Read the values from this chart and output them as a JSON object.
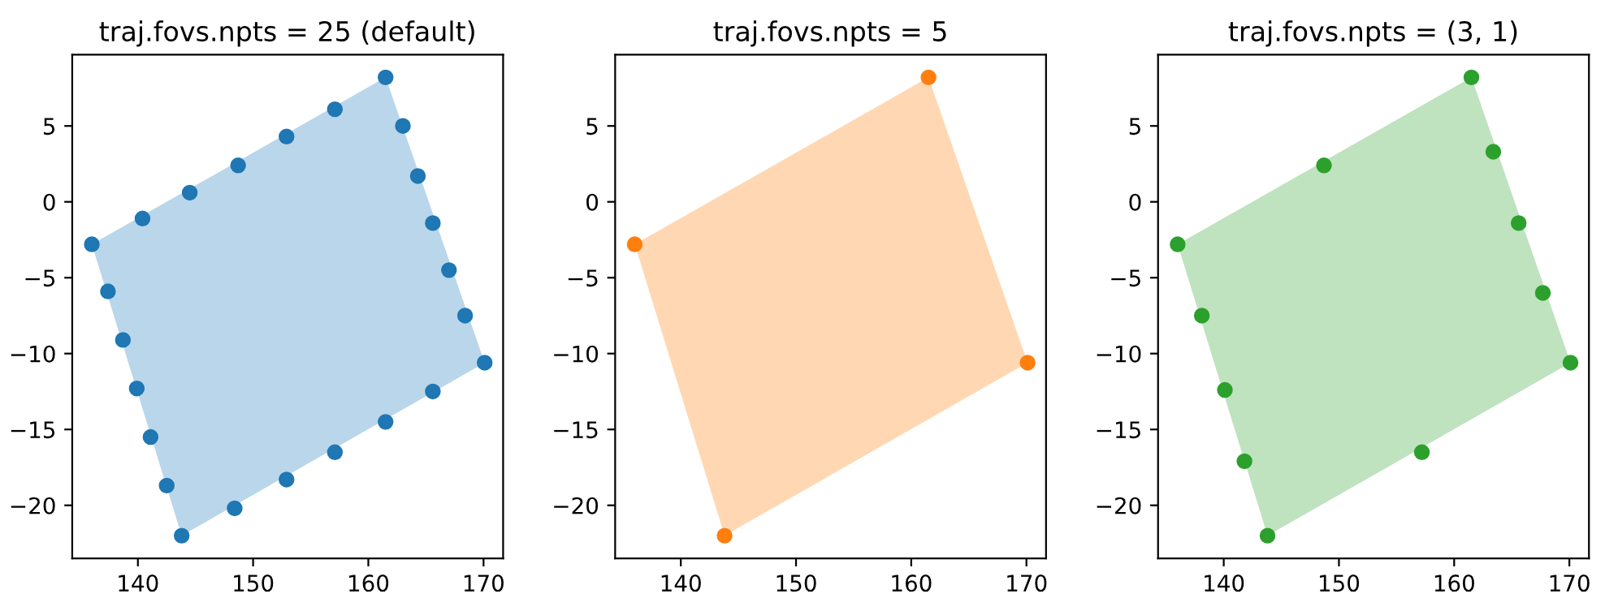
{
  "chart_data": [
    {
      "type": "scatter",
      "title": "traj.fovs.npts = 25 (default)",
      "xlim": [
        134.3,
        171.7
      ],
      "ylim": [
        -23.5,
        9.7
      ],
      "xticks": [
        140,
        150,
        160,
        170
      ],
      "yticks": [
        -20,
        -15,
        -10,
        -5,
        0,
        5
      ],
      "grid": false,
      "series": [
        {
          "type": "area",
          "color": "#bad6ea",
          "x": [
            136,
            161.5,
            170.1,
            143.8
          ],
          "values": [
            -2.8,
            8.2,
            -10.6,
            -22
          ]
        },
        {
          "marker": "circle",
          "color": "#1f77b4",
          "x": [
            136,
            140.4,
            144.5,
            148.7,
            152.9,
            157.1,
            161.5,
            163,
            164.3,
            165.6,
            167,
            168.4,
            170.1,
            165.6,
            161.5,
            157.1,
            152.9,
            148.4,
            143.8,
            142.5,
            141.1,
            139.9,
            138.7,
            137.4
          ],
          "values": [
            -2.8,
            -1.1,
            0.6,
            2.4,
            4.3,
            6.1,
            8.2,
            5.0,
            1.7,
            -1.4,
            -4.5,
            -7.5,
            -10.6,
            -12.5,
            -14.5,
            -16.5,
            -18.3,
            -20.2,
            -22,
            -18.7,
            -15.5,
            -12.3,
            -9.1,
            -5.9
          ]
        }
      ]
    },
    {
      "type": "scatter",
      "title": "traj.fovs.npts = 5",
      "xlim": [
        134.3,
        171.7
      ],
      "ylim": [
        -23.5,
        9.7
      ],
      "xticks": [
        140,
        150,
        160,
        170
      ],
      "yticks": [
        -20,
        -15,
        -10,
        -5,
        0,
        5
      ],
      "grid": false,
      "series": [
        {
          "type": "area",
          "color": "#ffd8b3",
          "x": [
            136,
            161.5,
            170.1,
            143.8
          ],
          "values": [
            -2.8,
            8.2,
            -10.6,
            -22
          ]
        },
        {
          "marker": "circle",
          "color": "#ff7f0e",
          "x": [
            136,
            161.5,
            170.1,
            143.8
          ],
          "values": [
            -2.8,
            8.2,
            -10.6,
            -22
          ]
        }
      ]
    },
    {
      "type": "scatter",
      "title": "traj.fovs.npts = (3, 1)",
      "xlim": [
        134.3,
        171.7
      ],
      "ylim": [
        -23.5,
        9.7
      ],
      "xticks": [
        140,
        150,
        160,
        170
      ],
      "yticks": [
        -20,
        -15,
        -10,
        -5,
        0,
        5
      ],
      "grid": false,
      "series": [
        {
          "type": "area",
          "color": "#bfe2bf",
          "x": [
            136,
            161.5,
            170.1,
            143.8
          ],
          "values": [
            -2.8,
            8.2,
            -10.6,
            -22
          ]
        },
        {
          "marker": "circle",
          "color": "#2ca02c",
          "x": [
            136,
            148.7,
            161.5,
            163.4,
            165.6,
            167.7,
            170.1,
            157.2,
            143.8,
            141.8,
            140.1,
            138.1
          ],
          "values": [
            -2.8,
            2.4,
            8.2,
            3.3,
            -1.4,
            -6,
            -10.6,
            -16.5,
            -22,
            -17.1,
            -12.4,
            -7.5
          ]
        }
      ]
    }
  ]
}
